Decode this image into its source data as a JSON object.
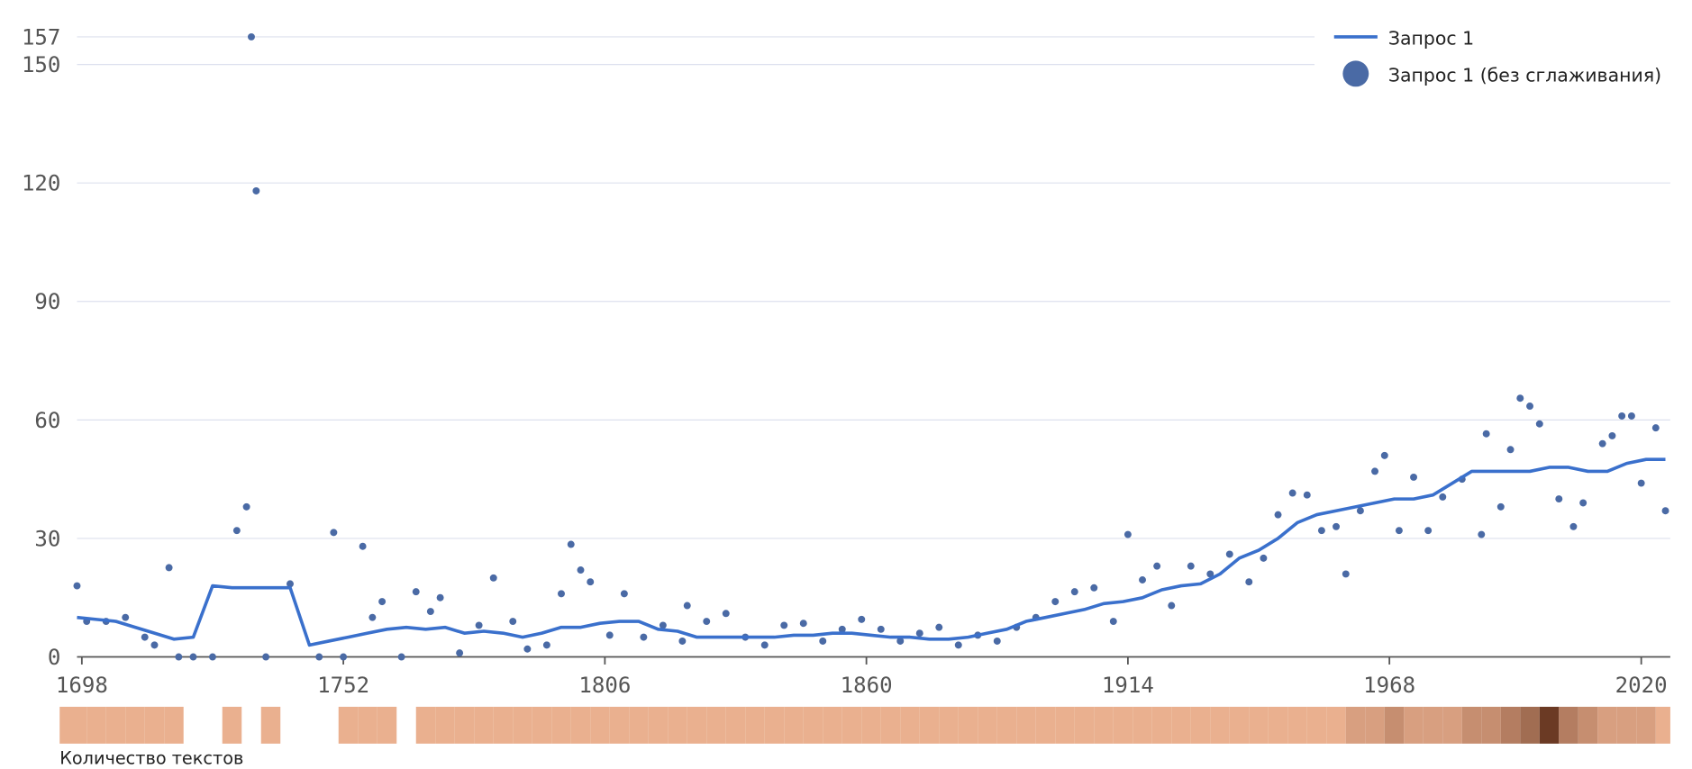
{
  "chart_data": {
    "type": "line-scatter",
    "x": [
      1697,
      1701,
      1705,
      1709,
      1713,
      1717,
      1721,
      1725,
      1729,
      1733,
      1737,
      1741,
      1745,
      1749,
      1753,
      1757,
      1761,
      1765,
      1769,
      1773,
      1777,
      1781,
      1785,
      1789,
      1793,
      1797,
      1801,
      1805,
      1809,
      1813,
      1817,
      1821,
      1825,
      1829,
      1833,
      1837,
      1841,
      1845,
      1849,
      1853,
      1857,
      1861,
      1865,
      1869,
      1873,
      1877,
      1881,
      1885,
      1889,
      1893,
      1897,
      1901,
      1905,
      1909,
      1913,
      1917,
      1921,
      1925,
      1929,
      1933,
      1937,
      1941,
      1945,
      1949,
      1953,
      1957,
      1961,
      1965,
      1969,
      1973,
      1977,
      1981,
      1985,
      1989,
      1993,
      1997,
      2001,
      2005,
      2009,
      2013,
      2017,
      2021,
      2025
    ],
    "series": [
      {
        "name": "Запрос 1",
        "color": "#3a70cc",
        "values": [
          10,
          9.5,
          9,
          7.5,
          6,
          4.5,
          5,
          18,
          17.5,
          17.5,
          17.5,
          17.5,
          3,
          4,
          5,
          6,
          7,
          7.5,
          7,
          7.5,
          6,
          6.5,
          6,
          5,
          6,
          7.5,
          7.5,
          8.5,
          9,
          9,
          7,
          6.5,
          5,
          5,
          5,
          5,
          5,
          5.5,
          5.5,
          6,
          6,
          5.5,
          5,
          5,
          4.5,
          4.5,
          5,
          6,
          7,
          9,
          10,
          11,
          12,
          13.5,
          14,
          15,
          17,
          18,
          18.5,
          21,
          25,
          27,
          30,
          34,
          36,
          37,
          38,
          39,
          40,
          40,
          41,
          44,
          47,
          47,
          47,
          47,
          48,
          48,
          47,
          47,
          49,
          50,
          50
        ]
      },
      {
        "name": "Запрос 1 (без сглаживания)",
        "color": "#4a6aa5",
        "x": [
          1697,
          1699,
          1703,
          1707,
          1711,
          1713,
          1716,
          1718,
          1721,
          1725,
          1730,
          1732,
          1733,
          1734,
          1736,
          1741,
          1747,
          1750,
          1752,
          1756,
          1758,
          1760,
          1764,
          1767,
          1770,
          1772,
          1776,
          1780,
          1783,
          1787,
          1790,
          1794,
          1797,
          1799,
          1801,
          1803,
          1807,
          1810,
          1814,
          1818,
          1822,
          1823,
          1827,
          1831,
          1835,
          1839,
          1843,
          1847,
          1851,
          1855,
          1859,
          1863,
          1867,
          1871,
          1875,
          1879,
          1883,
          1887,
          1891,
          1895,
          1899,
          1903,
          1907,
          1911,
          1914,
          1917,
          1920,
          1923,
          1927,
          1931,
          1935,
          1939,
          1942,
          1945,
          1948,
          1951,
          1954,
          1957,
          1959,
          1962,
          1965,
          1967,
          1970,
          1973,
          1976,
          1979,
          1983,
          1987,
          1988,
          1991,
          1993,
          1995,
          1997,
          1999,
          2003,
          2006,
          2008,
          2012,
          2014,
          2016,
          2018,
          2020,
          2023,
          2025
        ],
        "values": [
          18,
          9,
          9,
          10,
          5,
          3,
          22.6,
          0,
          0,
          0,
          32,
          38,
          157,
          118,
          0,
          18.5,
          0,
          31.5,
          0,
          28,
          10,
          14,
          0,
          16.5,
          11.5,
          15,
          1,
          8,
          20,
          9,
          2,
          3,
          16,
          28.5,
          22,
          19,
          5.5,
          16,
          5,
          8,
          4,
          13,
          9,
          11,
          5,
          3,
          8,
          8.5,
          4,
          7,
          9.5,
          7,
          4,
          6,
          7.5,
          3,
          5.5,
          4,
          7.5,
          10,
          14,
          16.5,
          17.5,
          9,
          31,
          19.5,
          23,
          13,
          23,
          21,
          26,
          19,
          25,
          36,
          41.5,
          41,
          32,
          33,
          21,
          37,
          47,
          51,
          32,
          45.5,
          32,
          40.5,
          45,
          31,
          56.5,
          38,
          52.5,
          65.5,
          63.5,
          59,
          40,
          33,
          39,
          54,
          56,
          61,
          61,
          44,
          58,
          37
        ]
      }
    ],
    "strip": {
      "label": "Количество текстов",
      "values": [
        1,
        1,
        1,
        1,
        1,
        1,
        null,
        null,
        1,
        null,
        1,
        null,
        null,
        null,
        1,
        1,
        1,
        null,
        1,
        1,
        1,
        1,
        1,
        1,
        1,
        1,
        1,
        1,
        1,
        1,
        1,
        1,
        1,
        1,
        1,
        1,
        1,
        1,
        1,
        1,
        1,
        1,
        1,
        1,
        1,
        1,
        1,
        1,
        1,
        1,
        1,
        1,
        1,
        1,
        1,
        1,
        1,
        1,
        1,
        1,
        1,
        1,
        1,
        1,
        1,
        1,
        2,
        2,
        3,
        2,
        2,
        2,
        3,
        3,
        4,
        5,
        8,
        4,
        3,
        2,
        2,
        2,
        1
      ]
    },
    "xlim": [
      1697,
      2026
    ],
    "xticks": [
      1698,
      1752,
      1806,
      1860,
      1914,
      1968,
      2020
    ],
    "ylim": [
      0,
      157
    ],
    "yticks": [
      0,
      30,
      60,
      90,
      120,
      150,
      157
    ],
    "grid": true
  }
}
